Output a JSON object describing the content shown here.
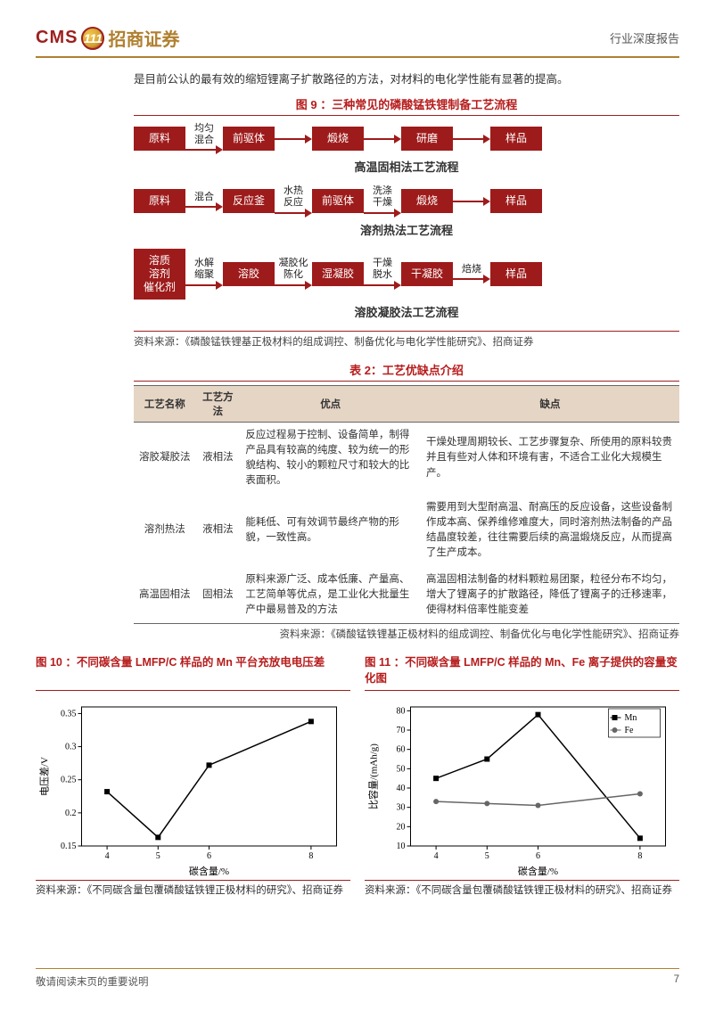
{
  "header": {
    "logo_cms": "CMS",
    "logo_badge": "111",
    "logo_cn": "招商证券",
    "report_type": "行业深度报告"
  },
  "intro": "是目前公认的最有效的缩短锂离子扩散路径的方法，对材料的电化学性能有显著的提高。",
  "figure9": {
    "title": "图 9 ：三种常见的磷酸锰铁锂制备工艺流程",
    "flows": [
      {
        "caption": "高温固相法工艺流程",
        "nodes": [
          "原料",
          "前驱体",
          "煅烧",
          "研磨",
          "样品"
        ],
        "edges": [
          "均匀\n混合",
          "",
          "",
          ""
        ]
      },
      {
        "caption": "溶剂热法工艺流程",
        "nodes": [
          "原料",
          "反应釜",
          "前驱体",
          "煅烧",
          "样品"
        ],
        "edges": [
          "混合",
          "水热\n反应",
          "洗涤\n干燥",
          ""
        ]
      },
      {
        "caption": "溶胶凝胶法工艺流程",
        "nodes": [
          "溶质\n溶剂\n催化剂",
          "溶胶",
          "湿凝胶",
          "干凝胶",
          "样品"
        ],
        "edges": [
          "水解\n缩聚",
          "凝胶化\n陈化",
          "干燥\n脱水",
          "焙烧"
        ]
      }
    ],
    "source": "资料来源：《磷酸锰铁锂基正极材料的组成调控、制备优化与电化学性能研究》、招商证券"
  },
  "table2": {
    "title": "表 2：工艺优缺点介绍",
    "columns": [
      "工艺名称",
      "工艺方法",
      "优点",
      "缺点"
    ],
    "rows": [
      [
        "溶胶凝胶法",
        "液相法",
        "反应过程易于控制、设备简单，制得产品具有较高的纯度、较为统一的形貌结构、较小的颗粒尺寸和较大的比表面积。",
        "干燥处理周期较长、工艺步骤复杂、所使用的原料较贵并且有些对人体和环境有害，不适合工业化大规模生产。"
      ],
      [
        "溶剂热法",
        "液相法",
        "能耗低、可有效调节最终产物的形貌，一致性高。",
        "需要用到大型耐高温、耐高压的反应设备，这些设备制作成本高、保养维修难度大，同时溶剂热法制备的产品结晶度较差，往往需要后续的高温煅烧反应，从而提高了生产成本。"
      ],
      [
        "高温固相法",
        "固相法",
        "原料来源广泛、成本低廉、产量高、工艺简单等优点，是工业化大批量生产中最易普及的方法",
        "高温固相法制备的材料颗粒易团聚，粒径分布不均匀，增大了锂离子的扩散路径，降低了锂离子的迁移速率，使得材料倍率性能变差"
      ]
    ],
    "source": "资料来源：《磷酸锰铁锂基正极材料的组成调控、制备优化与电化学性能研究》、招商证券"
  },
  "figure10": {
    "title": "图 10 ：不同碳含量 LMFP/C 样品的 Mn 平台充放电电压差",
    "type": "line",
    "xlabel": "碳含量/%",
    "ylabel": "电压差/V",
    "x": [
      4,
      5,
      6,
      8
    ],
    "y": [
      0.232,
      0.163,
      0.272,
      0.338
    ],
    "xlim": [
      3.5,
      8.5
    ],
    "ylim": [
      0.15,
      0.36
    ],
    "yticks": [
      0.15,
      0.2,
      0.25,
      0.3,
      0.35
    ],
    "marker": "square",
    "color": "#000000",
    "background_color": "#ffffff",
    "source": "资料来源：《不同碳含量包覆磷酸锰铁锂正极材料的研究》、招商证券"
  },
  "figure11": {
    "title": "图 11 ：不同碳含量 LMFP/C 样品的 Mn、Fe 离子提供的容量变化图",
    "type": "line",
    "xlabel": "碳含量/%",
    "ylabel": "比容量/(mAh/g)",
    "x": [
      4,
      5,
      6,
      8
    ],
    "series": [
      {
        "name": "Mn",
        "marker": "square",
        "color": "#000000",
        "y": [
          45,
          55,
          78,
          14
        ]
      },
      {
        "name": "Fe",
        "marker": "circle",
        "color": "#666666",
        "y": [
          33,
          32,
          31,
          37
        ]
      }
    ],
    "xlim": [
      3.5,
      8.5
    ],
    "ylim": [
      10,
      82
    ],
    "yticks": [
      10,
      20,
      30,
      40,
      50,
      60,
      70,
      80
    ],
    "background_color": "#ffffff",
    "source": "资料来源：《不同碳含量包覆磷酸锰铁锂正极材料的研究》、招商证券"
  },
  "footer": {
    "left": "敬请阅读末页的重要说明",
    "page": "7"
  }
}
